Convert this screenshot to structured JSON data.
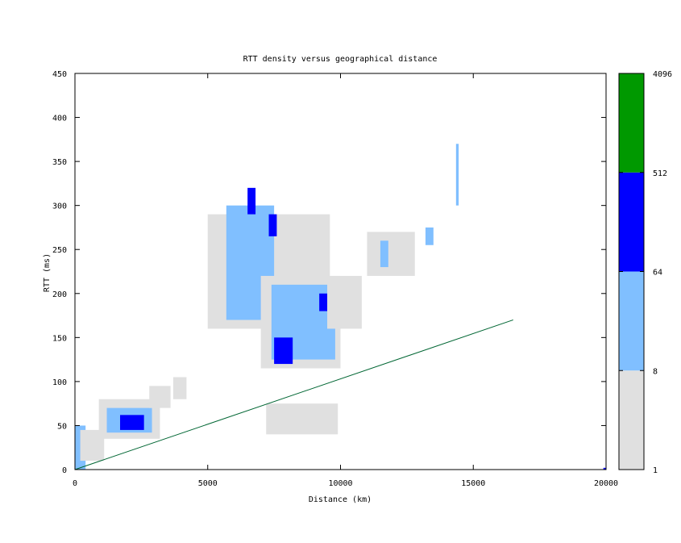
{
  "chart_data": {
    "type": "heatmap",
    "title": "RTT density versus geographical distance",
    "xlabel": "Distance (km)",
    "ylabel": "RTT (ms)",
    "xlim": [
      0,
      20000
    ],
    "ylim": [
      0,
      450
    ],
    "xticks": [
      0,
      5000,
      10000,
      15000,
      20000
    ],
    "yticks": [
      0,
      50,
      100,
      150,
      200,
      250,
      300,
      350,
      400,
      450
    ],
    "grid": false,
    "colorbar": {
      "scale": "log",
      "ticks": [
        1,
        8,
        64,
        512,
        4096
      ],
      "bins": [
        {
          "from": 1,
          "to": 8,
          "color": "#e0e0e0"
        },
        {
          "from": 8,
          "to": 64,
          "color": "#80bfff"
        },
        {
          "from": 64,
          "to": 512,
          "color": "#0000ff"
        },
        {
          "from": 512,
          "to": 4096,
          "color": "#009900"
        }
      ]
    },
    "reference_line": {
      "points": [
        [
          0,
          0
        ],
        [
          16500,
          170
        ]
      ],
      "color": "#006633"
    },
    "density_regions": [
      {
        "x": [
          0,
          400
        ],
        "y": [
          0,
          50
        ],
        "level": 1
      },
      {
        "x": [
          200,
          1100
        ],
        "y": [
          10,
          45
        ],
        "level": 0
      },
      {
        "x": [
          900,
          3200
        ],
        "y": [
          35,
          80
        ],
        "level": 0
      },
      {
        "x": [
          1200,
          2900
        ],
        "y": [
          42,
          70
        ],
        "level": 1
      },
      {
        "x": [
          1700,
          2600
        ],
        "y": [
          45,
          62
        ],
        "level": 2
      },
      {
        "x": [
          2800,
          3600
        ],
        "y": [
          70,
          95
        ],
        "level": 0
      },
      {
        "x": [
          3700,
          4200
        ],
        "y": [
          80,
          105
        ],
        "level": 0
      },
      {
        "x": [
          5000,
          9600
        ],
        "y": [
          160,
          290
        ],
        "level": 0
      },
      {
        "x": [
          5700,
          7500
        ],
        "y": [
          170,
          300
        ],
        "level": 1
      },
      {
        "x": [
          6500,
          6800
        ],
        "y": [
          290,
          320
        ],
        "level": 2
      },
      {
        "x": [
          7300,
          7600
        ],
        "y": [
          265,
          290
        ],
        "level": 2
      },
      {
        "x": [
          7000,
          10000
        ],
        "y": [
          115,
          220
        ],
        "level": 0
      },
      {
        "x": [
          7400,
          9800
        ],
        "y": [
          125,
          210
        ],
        "level": 1
      },
      {
        "x": [
          7500,
          8200
        ],
        "y": [
          120,
          150
        ],
        "level": 2
      },
      {
        "x": [
          9200,
          9800
        ],
        "y": [
          180,
          200
        ],
        "level": 2
      },
      {
        "x": [
          9500,
          10800
        ],
        "y": [
          160,
          220
        ],
        "level": 0
      },
      {
        "x": [
          11000,
          12800
        ],
        "y": [
          220,
          270
        ],
        "level": 0
      },
      {
        "x": [
          11500,
          11800
        ],
        "y": [
          230,
          260
        ],
        "level": 1
      },
      {
        "x": [
          13200,
          13500
        ],
        "y": [
          255,
          275
        ],
        "level": 1
      },
      {
        "x": [
          7200,
          9900
        ],
        "y": [
          40,
          75
        ],
        "level": 0
      },
      {
        "x": [
          14350,
          14450
        ],
        "y": [
          300,
          370
        ],
        "level": 1
      },
      {
        "x": [
          19900,
          20000
        ],
        "y": [
          0,
          2
        ],
        "level": 2
      }
    ]
  }
}
